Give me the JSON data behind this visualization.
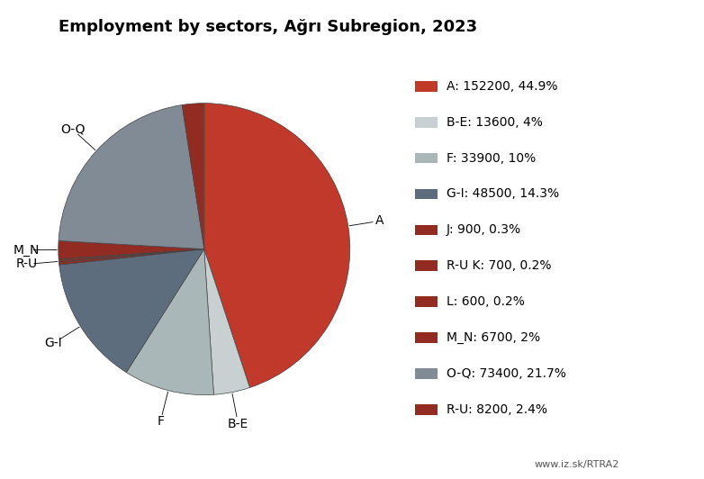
{
  "title": "Employment by sectors, Ağrı Subregion, 2023",
  "values": [
    152200,
    13600,
    33900,
    48500,
    900,
    700,
    600,
    6700,
    73400,
    8200
  ],
  "wedge_colors": [
    "#c0392b",
    "#c8d0d2",
    "#aab7b8",
    "#5d6d7e",
    "#922b21",
    "#922b21",
    "#922b21",
    "#922b21",
    "#808b96",
    "#922b21"
  ],
  "label_names": [
    "A",
    "B-E",
    "F",
    "G-I",
    "J",
    "R-U",
    "L",
    "M_N",
    "O-Q",
    "R-U"
  ],
  "show_labels": [
    true,
    true,
    true,
    true,
    false,
    true,
    false,
    true,
    true,
    false
  ],
  "legend_texts": [
    "A: 152200, 44.9%",
    "B-E: 13600, 4%",
    "F: 33900, 10%",
    "G-I: 48500, 14.3%",
    "J: 900, 0.3%",
    "R-U K: 700, 0.2%",
    "L: 600, 0.2%",
    "M_N: 6700, 2%",
    "O-Q: 73400, 21.7%",
    "R-U: 8200, 2.4%"
  ],
  "background_color": "#ffffff",
  "title_fontsize": 13,
  "legend_fontsize": 10,
  "label_fontsize": 10
}
